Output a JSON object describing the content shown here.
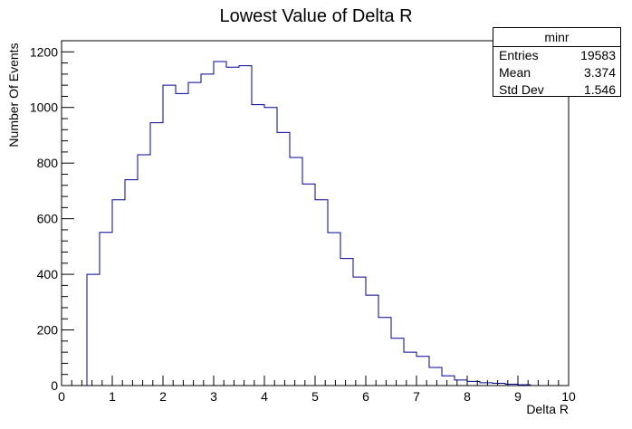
{
  "chart_data": {
    "type": "bar",
    "title": "Lowest Value of Delta R",
    "xlabel": "Delta R",
    "ylabel": "Number Of Events",
    "xlim": [
      0,
      10
    ],
    "ylim": [
      0,
      1240
    ],
    "x_ticks": [
      "0",
      "1",
      "2",
      "3",
      "4",
      "5",
      "6",
      "7",
      "8",
      "9",
      "10"
    ],
    "y_ticks": [
      "0",
      "200",
      "400",
      "600",
      "800",
      "1000",
      "1200"
    ],
    "bin_width": 0.25,
    "bin_starts": [
      0.5,
      0.75,
      1.0,
      1.25,
      1.5,
      1.75,
      2.0,
      2.25,
      2.5,
      2.75,
      3.0,
      3.25,
      3.5,
      3.75,
      4.0,
      4.25,
      4.5,
      4.75,
      5.0,
      5.25,
      5.5,
      5.75,
      6.0,
      6.25,
      6.5,
      6.75,
      7.0,
      7.25,
      7.5,
      7.75,
      8.0,
      8.25,
      8.5,
      8.75,
      9.0
    ],
    "values": [
      400,
      551,
      668,
      740,
      830,
      945,
      1080,
      1050,
      1090,
      1120,
      1165,
      1145,
      1150,
      1010,
      1000,
      910,
      820,
      725,
      668,
      550,
      457,
      390,
      325,
      245,
      170,
      120,
      105,
      65,
      35,
      20,
      15,
      10,
      8,
      5,
      3
    ],
    "grid": false,
    "line_color": "#000099",
    "stats": {
      "name": "minr",
      "rows": [
        {
          "label": "Entries",
          "value": "19583"
        },
        {
          "label": "Mean",
          "value": "3.374"
        },
        {
          "label": "Std Dev",
          "value": "1.546"
        }
      ]
    }
  }
}
